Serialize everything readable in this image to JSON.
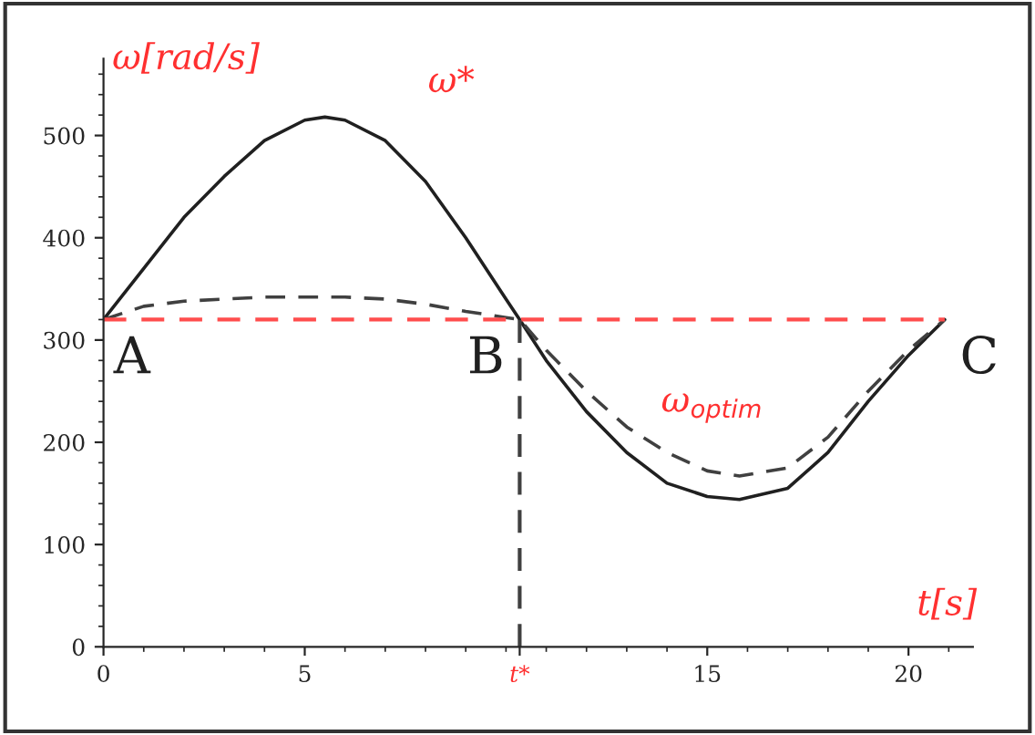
{
  "chart_data": {
    "type": "line",
    "xlabel": "t[s]",
    "ylabel": "ω[rad/s]",
    "x": [
      0,
      1,
      2,
      3,
      4,
      5,
      5.5,
      6,
      7,
      8,
      9,
      10,
      10.34,
      11,
      12,
      13,
      14,
      15,
      15.8,
      17,
      18,
      19,
      20,
      20.9
    ],
    "series": [
      {
        "color": "#202020",
        "line_style": "solid",
        "values": [
          320,
          370,
          420,
          460,
          495,
          515,
          518,
          515,
          495,
          455,
          400,
          340,
          320,
          280,
          230,
          190,
          160,
          147,
          144,
          155,
          190,
          240,
          285,
          320
        ]
      },
      {
        "color": "#404040",
        "line_style": "dashed",
        "values": [
          320,
          333,
          338,
          340,
          342,
          342,
          342,
          342,
          340,
          335,
          328,
          322,
          320,
          290,
          250,
          215,
          190,
          172,
          167,
          175,
          205,
          250,
          290,
          320
        ]
      }
    ],
    "xlim": [
      0,
      21.6
    ],
    "ylim": [
      0,
      575
    ],
    "xticks": [
      0,
      5,
      {
        "value": 10.34,
        "label": "t*"
      },
      15,
      20
    ],
    "yticks": [
      0,
      100,
      200,
      300,
      400,
      500
    ],
    "ref_lines": [
      {
        "axis": "y",
        "value": 320,
        "color": "#ff4d4d",
        "line_style": "dashed"
      },
      {
        "axis": "x",
        "value": 10.34,
        "color": "#404040",
        "line_style": "dashed"
      }
    ],
    "annotations": [
      "ω*",
      {
        "text": "A",
        "x": 0,
        "y": 320
      },
      {
        "text": "B",
        "x": 10.34,
        "y": 320
      },
      {
        "text": "C",
        "x": 20.9,
        "y": 320
      },
      "ω$_{optim}$"
    ],
    "grid": false,
    "legend": false,
    "marker": "none"
  }
}
